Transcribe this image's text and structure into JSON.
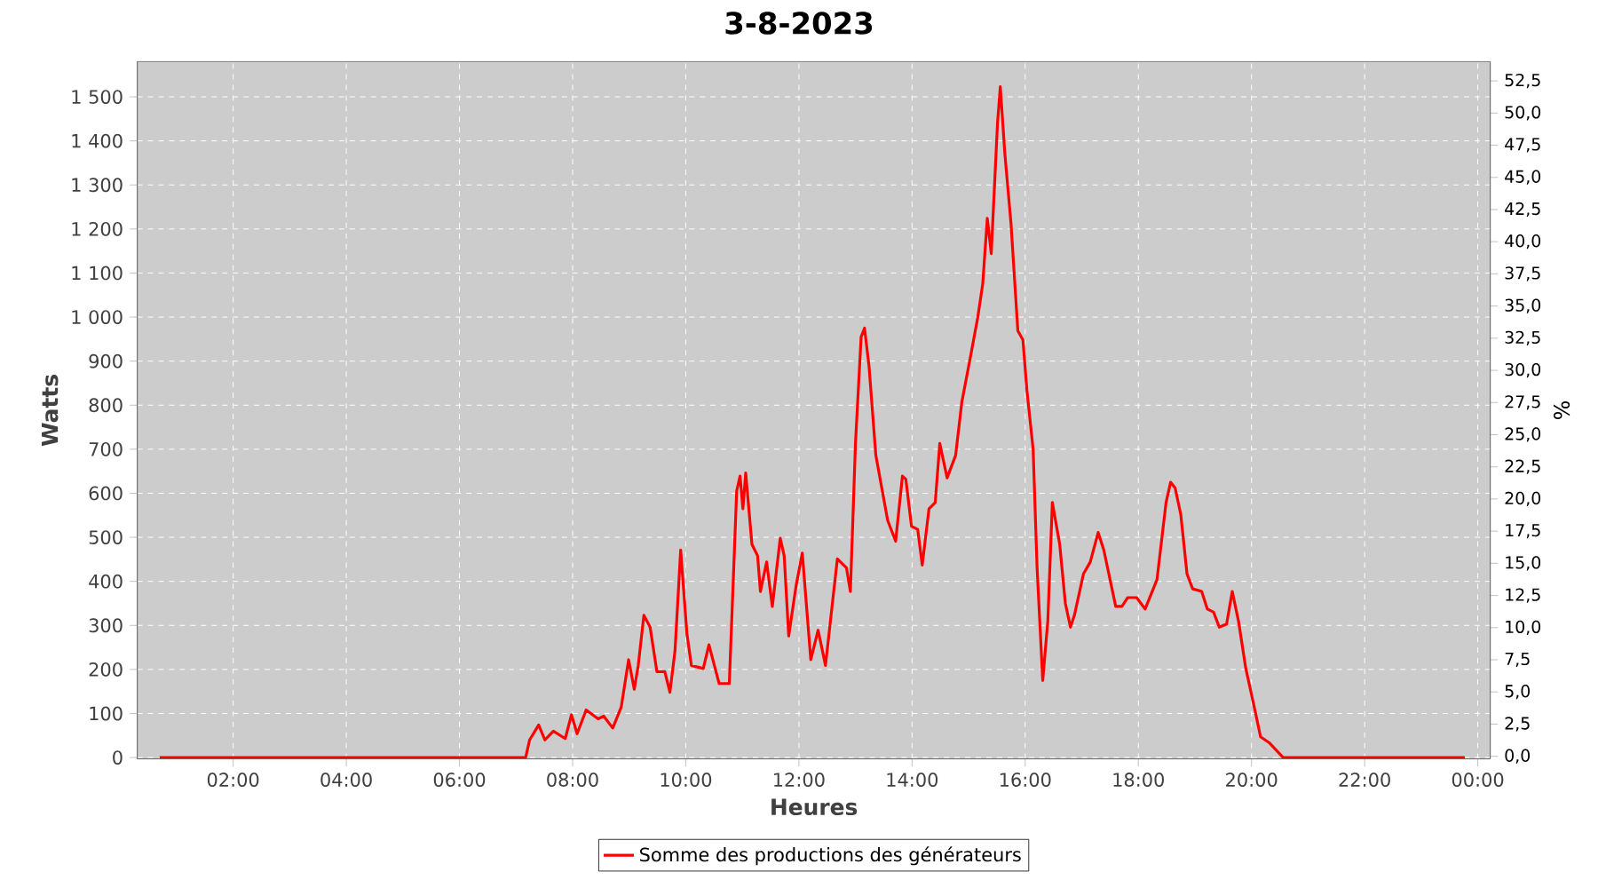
{
  "chart_data": {
    "type": "line",
    "title": "3-8-2023",
    "xlabel": "Heures",
    "ylabel": "Watts",
    "y2label": "%",
    "xlim": [
      0.305,
      24.22
    ],
    "ylim": [
      -3,
      1580
    ],
    "y2lim": [
      -0.2,
      54.0
    ],
    "xticks": [
      {
        "value": 2,
        "label": "02:00"
      },
      {
        "value": 4,
        "label": "04:00"
      },
      {
        "value": 6,
        "label": "06:00"
      },
      {
        "value": 8,
        "label": "08:00"
      },
      {
        "value": 10,
        "label": "10:00"
      },
      {
        "value": 12,
        "label": "12:00"
      },
      {
        "value": 14,
        "label": "14:00"
      },
      {
        "value": 16,
        "label": "16:00"
      },
      {
        "value": 18,
        "label": "18:00"
      },
      {
        "value": 20,
        "label": "20:00"
      },
      {
        "value": 22,
        "label": "22:00"
      },
      {
        "value": 24,
        "label": "00:00"
      }
    ],
    "yticks": [
      0,
      100,
      200,
      300,
      400,
      500,
      600,
      700,
      800,
      900,
      {
        "value": 1000,
        "label": "1 000"
      },
      {
        "value": 1100,
        "label": "1 100"
      },
      {
        "value": 1200,
        "label": "1 200"
      },
      {
        "value": 1300,
        "label": "1 300"
      },
      {
        "value": 1400,
        "label": "1 400"
      },
      {
        "value": 1500,
        "label": "1 500"
      }
    ],
    "y2ticks": [
      {
        "value": 0,
        "label": "0,0"
      },
      {
        "value": 2.5,
        "label": "2,5"
      },
      {
        "value": 5,
        "label": "5,0"
      },
      {
        "value": 7.5,
        "label": "7,5"
      },
      {
        "value": 10,
        "label": "10,0"
      },
      {
        "value": 12.5,
        "label": "12,5"
      },
      {
        "value": 15,
        "label": "15,0"
      },
      {
        "value": 17.5,
        "label": "17,5"
      },
      {
        "value": 20,
        "label": "20,0"
      },
      {
        "value": 22.5,
        "label": "22,5"
      },
      {
        "value": 25,
        "label": "25,0"
      },
      {
        "value": 27.5,
        "label": "27,5"
      },
      {
        "value": 30,
        "label": "30,0"
      },
      {
        "value": 32.5,
        "label": "32,5"
      },
      {
        "value": 35,
        "label": "35,0"
      },
      {
        "value": 37.5,
        "label": "37,5"
      },
      {
        "value": 40,
        "label": "40,0"
      },
      {
        "value": 42.5,
        "label": "42,5"
      },
      {
        "value": 45,
        "label": "45,0"
      },
      {
        "value": 47.5,
        "label": "47,5"
      },
      {
        "value": 50,
        "label": "50,0"
      },
      {
        "value": 52.5,
        "label": "52,5"
      }
    ],
    "grid": true,
    "legend": "bottom",
    "series": [
      {
        "name": "Somme des productions des  générateurs",
        "color": "#ff0000",
        "x": [
          0.7,
          2.59,
          5.73,
          7.17,
          7.24,
          7.4,
          7.51,
          7.66,
          7.87,
          7.98,
          8.08,
          8.24,
          8.45,
          8.55,
          8.71,
          8.86,
          8.99,
          9.09,
          9.16,
          9.26,
          9.37,
          9.49,
          9.63,
          9.72,
          9.81,
          9.91,
          10.02,
          10.1,
          10.31,
          10.41,
          10.59,
          10.77,
          10.9,
          10.96,
          11.01,
          11.06,
          11.17,
          11.27,
          11.32,
          11.43,
          11.53,
          11.67,
          11.74,
          11.82,
          11.95,
          12.06,
          12.21,
          12.34,
          12.47,
          12.68,
          12.84,
          12.91,
          13.0,
          13.1,
          13.16,
          13.24,
          13.36,
          13.57,
          13.71,
          13.83,
          13.89,
          13.99,
          14.1,
          14.18,
          14.3,
          14.41,
          14.49,
          14.62,
          14.77,
          14.88,
          15.04,
          15.16,
          15.25,
          15.33,
          15.4,
          15.51,
          15.56,
          15.64,
          15.75,
          15.87,
          15.96,
          16.03,
          16.14,
          16.21,
          16.31,
          16.4,
          16.48,
          16.61,
          16.71,
          16.8,
          16.87,
          17.03,
          17.15,
          17.29,
          17.39,
          17.6,
          17.71,
          17.81,
          17.97,
          18.12,
          18.33,
          18.49,
          18.57,
          18.65,
          18.75,
          18.86,
          18.96,
          19.12,
          19.22,
          19.33,
          19.43,
          19.56,
          19.66,
          19.77,
          19.9,
          20.06,
          20.16,
          20.31,
          20.56,
          22.05,
          23.77
        ],
        "values": [
          0,
          0,
          0,
          0,
          40,
          74,
          40,
          60,
          43,
          97,
          54,
          108,
          88,
          94,
          67,
          115,
          222,
          155,
          209,
          323,
          296,
          195,
          195,
          148,
          242,
          471,
          282,
          209,
          202,
          256,
          168,
          168,
          605,
          639,
          565,
          646,
          484,
          458,
          377,
          444,
          343,
          498,
          458,
          276,
          390,
          464,
          222,
          289,
          209,
          451,
          431,
          377,
          713,
          955,
          975,
          888,
          686,
          538,
          491,
          639,
          632,
          525,
          518,
          437,
          565,
          579,
          713,
          635,
          686,
          807,
          915,
          998,
          1076,
          1224,
          1144,
          1439,
          1523,
          1372,
          1211,
          969,
          948,
          834,
          700,
          431,
          175,
          310,
          579,
          484,
          350,
          296,
          323,
          417,
          444,
          511,
          471,
          343,
          343,
          363,
          363,
          337,
          404,
          579,
          625,
          612,
          552,
          417,
          383,
          377,
          337,
          330,
          296,
          303,
          377,
          310,
          202,
          108,
          47,
          34,
          0,
          0,
          0
        ]
      }
    ]
  }
}
